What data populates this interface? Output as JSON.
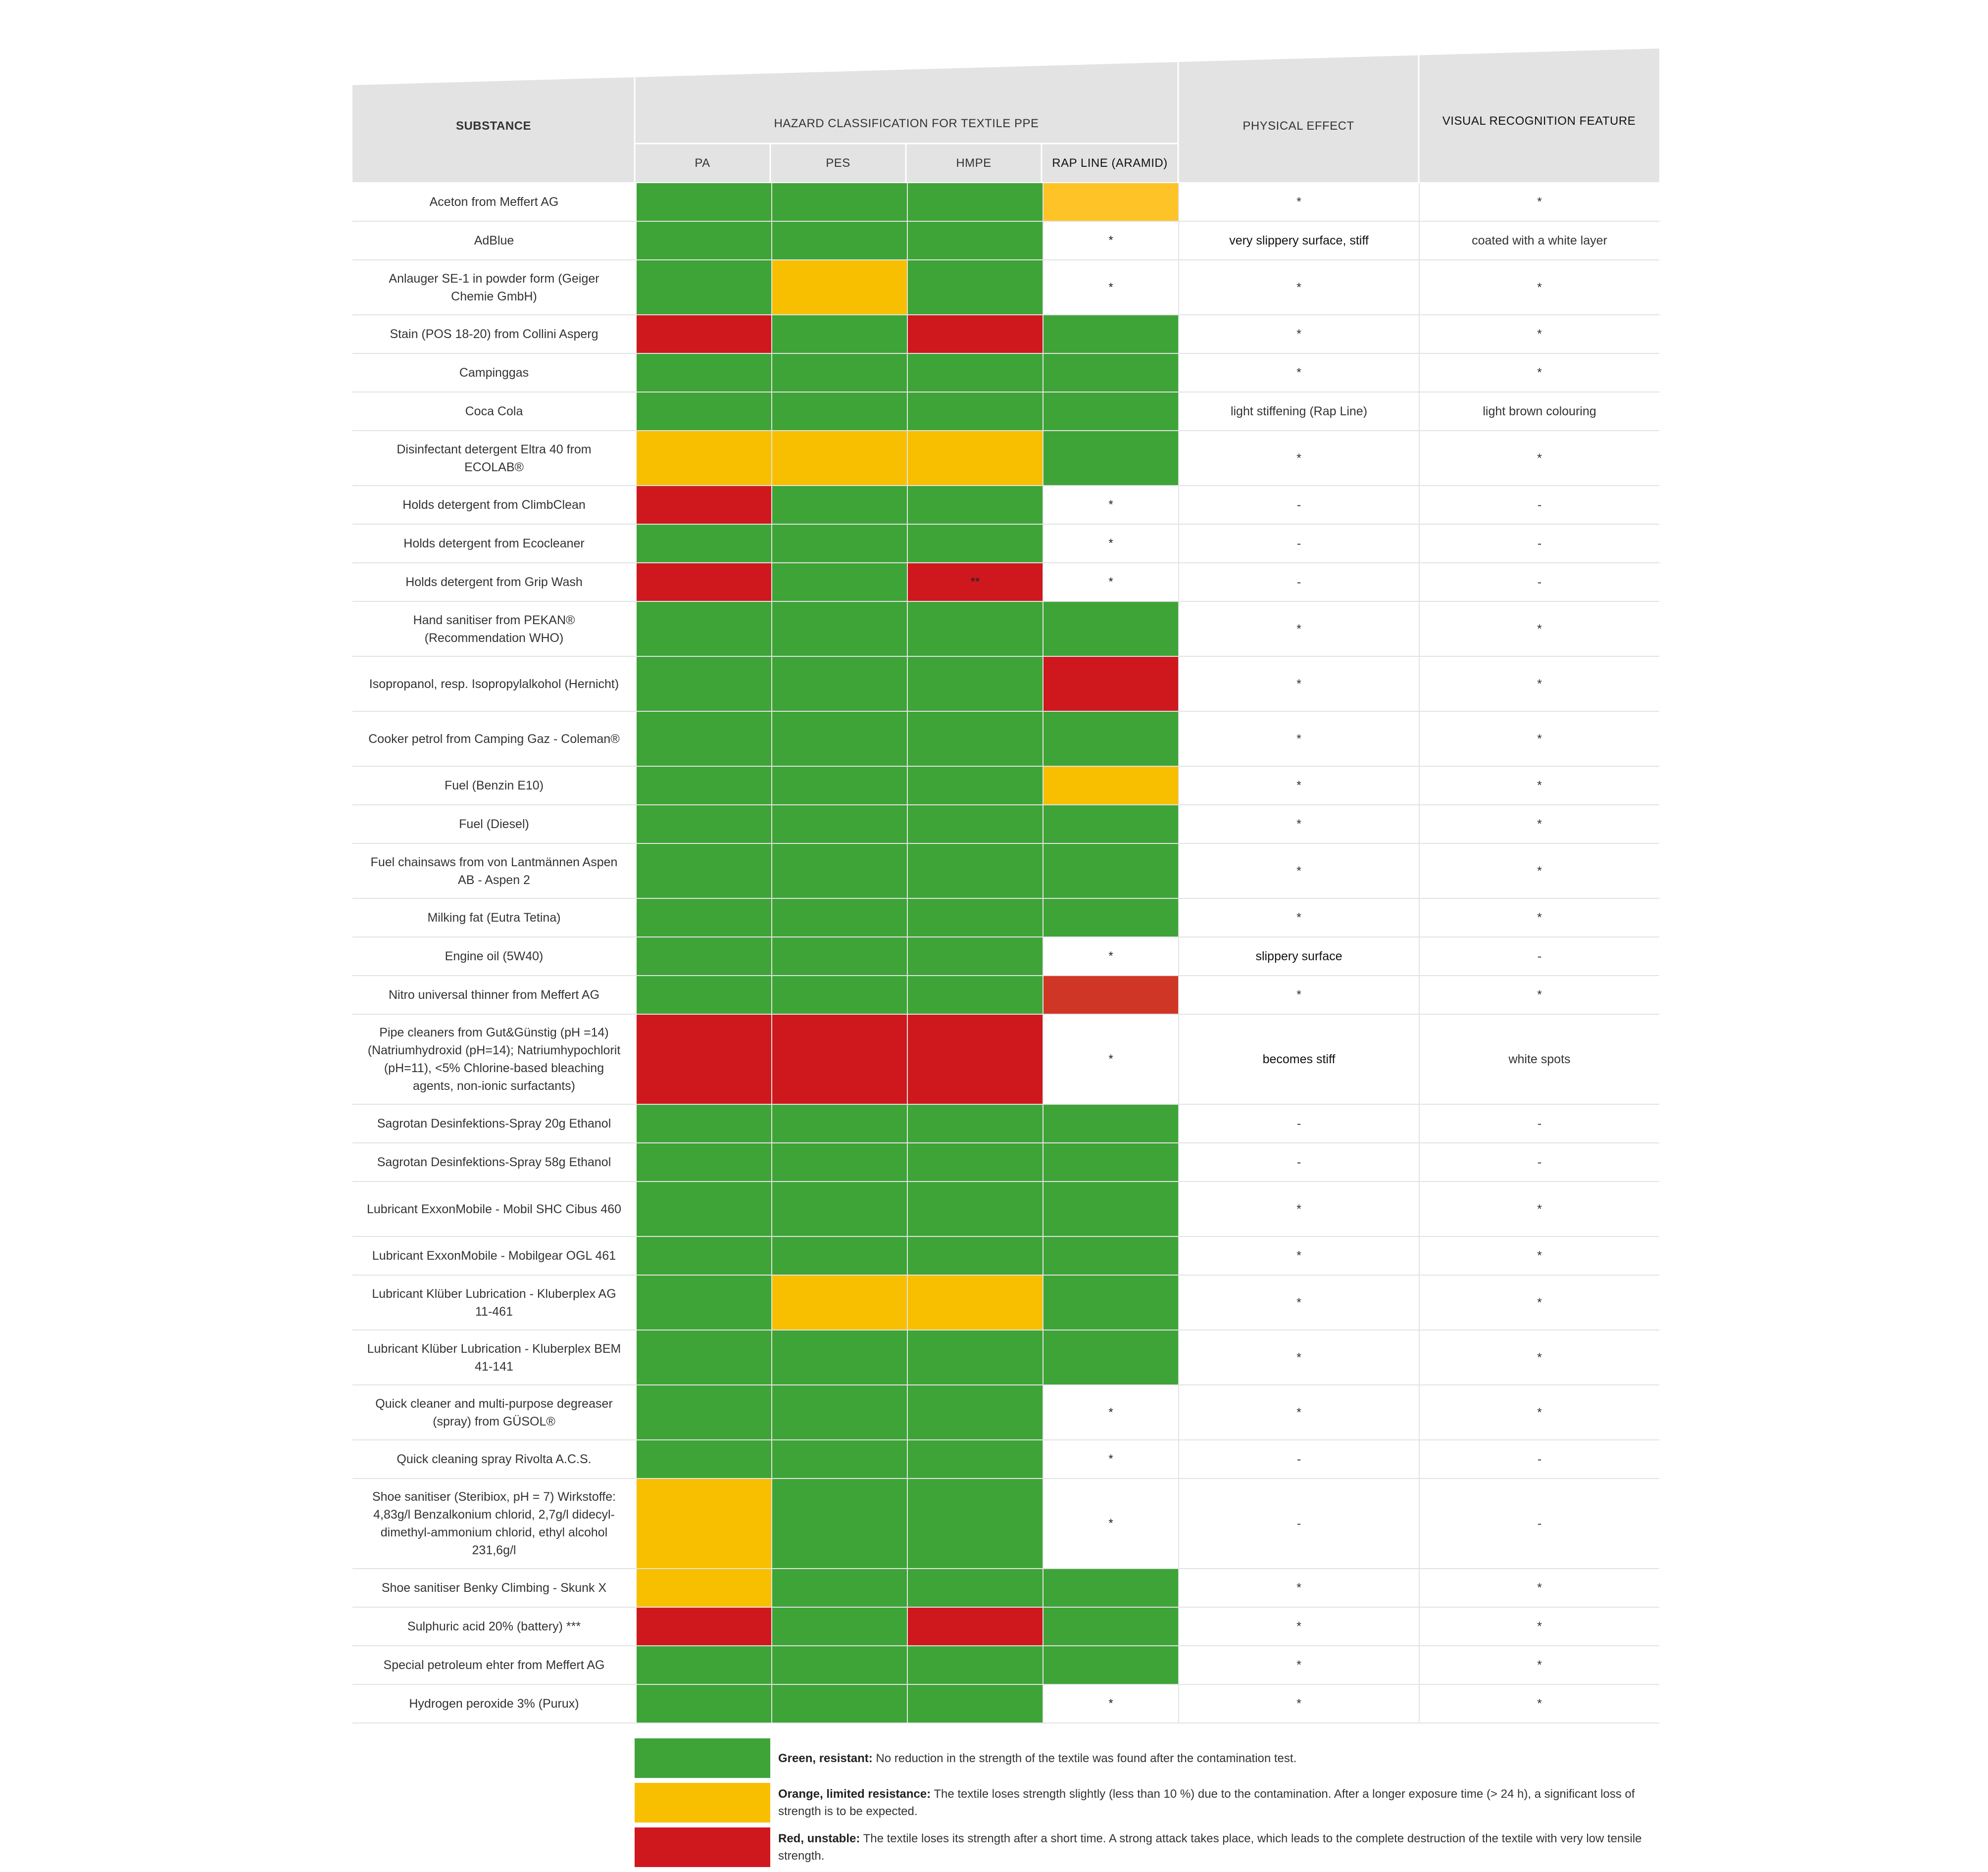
{
  "colors": {
    "green": "#3ea438",
    "orange": "#f8bf00",
    "amber": "#fdc327",
    "red": "#ce181e",
    "red_alt": "#d03626",
    "header_gray": "#e3e3e3",
    "white": "#ffffff"
  },
  "header": {
    "substance": "SUBSTANCE",
    "hazard_classification": "HAZARD CLASSIFICATION FOR TEXTILE PPE",
    "physical_effect": "PHYSICAL EFFECT",
    "visual_recognition": "VISUAL RECOGNITION FEATURE",
    "materials": [
      "PA",
      "PES",
      "HMPE",
      "RAP LINE (ARAMID)"
    ]
  },
  "rows": [
    {
      "substance": "Aceton from Meffert AG",
      "cells": [
        {
          "c": "green",
          "t": ""
        },
        {
          "c": "green",
          "t": ""
        },
        {
          "c": "green",
          "t": ""
        },
        {
          "c": "amber",
          "t": ""
        }
      ],
      "physical": "*",
      "visual": "*",
      "h": 78
    },
    {
      "substance": "AdBlue",
      "cells": [
        {
          "c": "green",
          "t": ""
        },
        {
          "c": "green",
          "t": ""
        },
        {
          "c": "green",
          "t": ""
        },
        {
          "c": "white",
          "t": "*"
        }
      ],
      "physical": "very slippery surface, stiff",
      "visual": "coated with a white layer",
      "h": 78
    },
    {
      "substance": "Anlauger SE-1 in powder form (Geiger Chemie GmbH)",
      "cells": [
        {
          "c": "green",
          "t": ""
        },
        {
          "c": "orange",
          "t": ""
        },
        {
          "c": "green",
          "t": ""
        },
        {
          "c": "white",
          "t": "*"
        }
      ],
      "physical": "*",
      "visual": "*",
      "h": 111
    },
    {
      "substance": "Stain (POS 18-20) from Collini Asperg",
      "cells": [
        {
          "c": "red",
          "t": ""
        },
        {
          "c": "green",
          "t": ""
        },
        {
          "c": "red",
          "t": ""
        },
        {
          "c": "green",
          "t": ""
        }
      ],
      "physical": "*",
      "visual": "*",
      "h": 78
    },
    {
      "substance": "Campinggas",
      "cells": [
        {
          "c": "green",
          "t": ""
        },
        {
          "c": "green",
          "t": ""
        },
        {
          "c": "green",
          "t": ""
        },
        {
          "c": "green",
          "t": ""
        }
      ],
      "physical": "*",
      "visual": "*",
      "h": 78
    },
    {
      "substance": "Coca Cola",
      "cells": [
        {
          "c": "green",
          "t": ""
        },
        {
          "c": "green",
          "t": ""
        },
        {
          "c": "green",
          "t": ""
        },
        {
          "c": "green",
          "t": ""
        }
      ],
      "physical": "light stiffening (Rap Line)",
      "visual": "light brown colouring",
      "h": 78
    },
    {
      "substance": "Disinfectant detergent Eltra 40 from ECOLAB®",
      "cells": [
        {
          "c": "orange",
          "t": ""
        },
        {
          "c": "orange",
          "t": ""
        },
        {
          "c": "orange",
          "t": ""
        },
        {
          "c": "green",
          "t": ""
        }
      ],
      "physical": "*",
      "visual": "*",
      "h": 111
    },
    {
      "substance": "Holds detergent from ClimbClean",
      "cells": [
        {
          "c": "red",
          "t": ""
        },
        {
          "c": "green",
          "t": ""
        },
        {
          "c": "green",
          "t": ""
        },
        {
          "c": "white",
          "t": "*"
        }
      ],
      "physical": "-",
      "visual": "-",
      "h": 78
    },
    {
      "substance": "Holds detergent from Ecocleaner",
      "cells": [
        {
          "c": "green",
          "t": ""
        },
        {
          "c": "green",
          "t": ""
        },
        {
          "c": "green",
          "t": ""
        },
        {
          "c": "white",
          "t": "*"
        }
      ],
      "physical": "-",
      "visual": "-",
      "h": 78
    },
    {
      "substance": "Holds detergent from Grip Wash",
      "cells": [
        {
          "c": "red",
          "t": ""
        },
        {
          "c": "green",
          "t": ""
        },
        {
          "c": "red",
          "t": "**"
        },
        {
          "c": "white",
          "t": "*"
        }
      ],
      "physical": "-",
      "visual": "-",
      "h": 78
    },
    {
      "substance": "Hand sanitiser from PEKAN® (Recommendation WHO)",
      "cells": [
        {
          "c": "green",
          "t": ""
        },
        {
          "c": "green",
          "t": ""
        },
        {
          "c": "green",
          "t": ""
        },
        {
          "c": "green",
          "t": ""
        }
      ],
      "physical": "*",
      "visual": "*",
      "h": 111
    },
    {
      "substance": "Isopropanol, resp. Isopropylalkohol (Hernicht)",
      "cells": [
        {
          "c": "green",
          "t": ""
        },
        {
          "c": "green",
          "t": ""
        },
        {
          "c": "green",
          "t": ""
        },
        {
          "c": "red",
          "t": ""
        }
      ],
      "physical": "*",
      "visual": "*",
      "h": 111
    },
    {
      "substance": "Cooker petrol from Camping Gaz - Cole­man®",
      "cells": [
        {
          "c": "green",
          "t": ""
        },
        {
          "c": "green",
          "t": ""
        },
        {
          "c": "green",
          "t": ""
        },
        {
          "c": "green",
          "t": ""
        }
      ],
      "physical": "*",
      "visual": "*",
      "h": 111
    },
    {
      "substance": "Fuel (Benzin E10)",
      "cells": [
        {
          "c": "green",
          "t": ""
        },
        {
          "c": "green",
          "t": ""
        },
        {
          "c": "green",
          "t": ""
        },
        {
          "c": "orange",
          "t": ""
        }
      ],
      "physical": "*",
      "visual": "*",
      "h": 78
    },
    {
      "substance": "Fuel (Diesel)",
      "cells": [
        {
          "c": "green",
          "t": ""
        },
        {
          "c": "green",
          "t": ""
        },
        {
          "c": "green",
          "t": ""
        },
        {
          "c": "green",
          "t": ""
        }
      ],
      "physical": "*",
      "visual": "*",
      "h": 78
    },
    {
      "substance": "Fuel chainsaws from von Lantmännen Aspen AB - Aspen 2",
      "cells": [
        {
          "c": "green",
          "t": ""
        },
        {
          "c": "green",
          "t": ""
        },
        {
          "c": "green",
          "t": ""
        },
        {
          "c": "green",
          "t": ""
        }
      ],
      "physical": "*",
      "visual": "*",
      "h": 111
    },
    {
      "substance": "Milking fat (Eutra Tetina)",
      "cells": [
        {
          "c": "green",
          "t": ""
        },
        {
          "c": "green",
          "t": ""
        },
        {
          "c": "green",
          "t": ""
        },
        {
          "c": "green",
          "t": ""
        }
      ],
      "physical": "*",
      "visual": "*",
      "h": 78
    },
    {
      "substance": "Engine oil (5W40)",
      "cells": [
        {
          "c": "green",
          "t": ""
        },
        {
          "c": "green",
          "t": ""
        },
        {
          "c": "green",
          "t": ""
        },
        {
          "c": "white",
          "t": "*"
        }
      ],
      "physical": "slippery surface",
      "visual": "-",
      "h": 78
    },
    {
      "substance": "Nitro universal thinner from Meffert AG",
      "cells": [
        {
          "c": "green",
          "t": ""
        },
        {
          "c": "green",
          "t": ""
        },
        {
          "c": "green",
          "t": ""
        },
        {
          "c": "red_alt",
          "t": ""
        }
      ],
      "physical": "*",
      "visual": "*",
      "h": 78
    },
    {
      "substance": "Pipe cleaners from Gut&Günstig (pH =14) (Natriumhydroxid (pH=14); Natriumhypo­chlorit (pH=11), <5% Chlorine-based bleaching agents, non-ionic surfactants)",
      "cells": [
        {
          "c": "red",
          "t": ""
        },
        {
          "c": "red",
          "t": ""
        },
        {
          "c": "red",
          "t": ""
        },
        {
          "c": "white",
          "t": "*"
        }
      ],
      "physical": "becomes stiff",
      "visual": "white spots",
      "h": 182
    },
    {
      "substance": "Sagrotan Desinfektions-Spray 20g Ethanol",
      "cells": [
        {
          "c": "green",
          "t": ""
        },
        {
          "c": "green",
          "t": ""
        },
        {
          "c": "green",
          "t": ""
        },
        {
          "c": "green",
          "t": ""
        }
      ],
      "physical": "-",
      "visual": "-",
      "h": 78
    },
    {
      "substance": "Sagrotan Desinfektions-Spray 58g Ethanol",
      "cells": [
        {
          "c": "green",
          "t": ""
        },
        {
          "c": "green",
          "t": ""
        },
        {
          "c": "green",
          "t": ""
        },
        {
          "c": "green",
          "t": ""
        }
      ],
      "physical": "-",
      "visual": "-",
      "h": 78
    },
    {
      "substance": "Lubricant ExxonMobile - Mobil SHC Cibus 460",
      "cells": [
        {
          "c": "green",
          "t": ""
        },
        {
          "c": "green",
          "t": ""
        },
        {
          "c": "green",
          "t": ""
        },
        {
          "c": "green",
          "t": ""
        }
      ],
      "physical": "*",
      "visual": "*",
      "h": 111
    },
    {
      "substance": "Lubricant ExxonMobile - Mobilgear OGL 461",
      "cells": [
        {
          "c": "green",
          "t": ""
        },
        {
          "c": "green",
          "t": ""
        },
        {
          "c": "green",
          "t": ""
        },
        {
          "c": "green",
          "t": ""
        }
      ],
      "physical": "*",
      "visual": "*",
      "h": 78
    },
    {
      "substance": "Lubricant Klüber Lubrication - Kluberplex AG 11-461",
      "cells": [
        {
          "c": "green",
          "t": ""
        },
        {
          "c": "orange",
          "t": ""
        },
        {
          "c": "orange",
          "t": ""
        },
        {
          "c": "green",
          "t": ""
        }
      ],
      "physical": "*",
      "visual": "*",
      "h": 111
    },
    {
      "substance": "Lubricant Klüber Lubrication - Kluberplex BEM 41-141",
      "cells": [
        {
          "c": "green",
          "t": ""
        },
        {
          "c": "green",
          "t": ""
        },
        {
          "c": "green",
          "t": ""
        },
        {
          "c": "green",
          "t": ""
        }
      ],
      "physical": "*",
      "visual": "*",
      "h": 111
    },
    {
      "substance": "Quick cleaner and multi-purpose degreaser (spray) from GÜSOL®",
      "cells": [
        {
          "c": "green",
          "t": ""
        },
        {
          "c": "green",
          "t": ""
        },
        {
          "c": "green",
          "t": ""
        },
        {
          "c": "white",
          "t": "*"
        }
      ],
      "physical": "*",
      "visual": "*",
      "h": 111
    },
    {
      "substance": "Quick cleaning spray Rivolta A.C.S.",
      "cells": [
        {
          "c": "green",
          "t": ""
        },
        {
          "c": "green",
          "t": ""
        },
        {
          "c": "green",
          "t": ""
        },
        {
          "c": "white",
          "t": "*"
        }
      ],
      "physical": "-",
      "visual": "-",
      "h": 78
    },
    {
      "substance": "Shoe sanitiser (Steribiox, pH = 7) Wirkstoffe: 4,83g/l Benzalkonium chlorid, 2,7g/l didecyl-dimethyl-ammonium chlorid, ethyl alcohol 231,6g/l",
      "cells": [
        {
          "c": "orange",
          "t": ""
        },
        {
          "c": "green",
          "t": ""
        },
        {
          "c": "green",
          "t": ""
        },
        {
          "c": "white",
          "t": "*"
        }
      ],
      "physical": "-",
      "visual": "-",
      "h": 182
    },
    {
      "substance": "Shoe sanitiser Benky Climbing - Skunk X",
      "cells": [
        {
          "c": "orange",
          "t": ""
        },
        {
          "c": "green",
          "t": ""
        },
        {
          "c": "green",
          "t": ""
        },
        {
          "c": "green",
          "t": ""
        }
      ],
      "physical": "*",
      "visual": "*",
      "h": 78
    },
    {
      "substance": "Sulphuric acid 20% (battery) ***",
      "cells": [
        {
          "c": "red",
          "t": ""
        },
        {
          "c": "green",
          "t": ""
        },
        {
          "c": "red",
          "t": ""
        },
        {
          "c": "green",
          "t": ""
        }
      ],
      "physical": "*",
      "visual": "*",
      "h": 78
    },
    {
      "substance": "Special petroleum ehter from Meffert AG",
      "cells": [
        {
          "c": "green",
          "t": ""
        },
        {
          "c": "green",
          "t": ""
        },
        {
          "c": "green",
          "t": ""
        },
        {
          "c": "green",
          "t": ""
        }
      ],
      "physical": "*",
      "visual": "*",
      "h": 78
    },
    {
      "substance": "Hydrogen peroxide 3% (Purux)",
      "cells": [
        {
          "c": "green",
          "t": ""
        },
        {
          "c": "green",
          "t": ""
        },
        {
          "c": "green",
          "t": ""
        },
        {
          "c": "white",
          "t": "*"
        }
      ],
      "physical": "*",
      "visual": "*",
      "h": 78
    }
  ],
  "legend": [
    {
      "color": "green",
      "title": "Green, resistant:",
      "text": " No reduction in the strength of the textile was found after the contamination test."
    },
    {
      "color": "orange",
      "title": "Orange, limited resistance:",
      "text": " The textile loses strength slightly (less than 10 %) due to the contamination. After a longer exposure time (> 24 h), a significant loss of strength is to be expected."
    },
    {
      "color": "red",
      "title": "Red, unstable:",
      "text": " The textile loses its strength after a short time. A strong attack takes place, which leads to the complete destruction of the textile with very low tensile strength."
    }
  ]
}
